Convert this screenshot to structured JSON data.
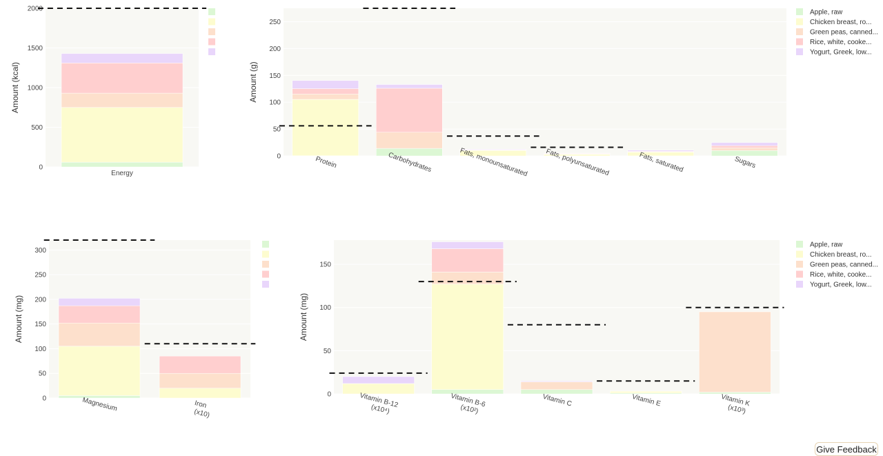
{
  "feedback_label": "Give Feedback",
  "series_colors": [
    "#dcf7d4",
    "#fdfccf",
    "#fde0cc",
    "#ffcfcf",
    "#e9d6fb"
  ],
  "chart_data": [
    {
      "type": "bar",
      "stacked": true,
      "categories": [
        "Energy"
      ],
      "ylabel": "Amount (kcal)",
      "ylim": [
        0,
        2000
      ],
      "yticks": [
        0,
        500,
        1000,
        1500,
        2000
      ],
      "legend": "top-right",
      "series": [
        {
          "values": [
            60
          ]
        },
        {
          "values": [
            690
          ]
        },
        {
          "values": [
            180
          ]
        },
        {
          "values": [
            380
          ]
        },
        {
          "values": [
            120
          ]
        }
      ],
      "reference": [
        2000
      ]
    },
    {
      "type": "bar",
      "stacked": true,
      "categories": [
        "Protein",
        "Carbohydrates",
        "Fats, monounsaturated",
        "Fats, polyunsaturated",
        "Fats, saturated",
        "Sugars"
      ],
      "ylabel": "Amount (g)",
      "ylim": [
        0,
        275
      ],
      "yticks": [
        0,
        50,
        100,
        150,
        200,
        250
      ],
      "legend": "top-right",
      "series": [
        {
          "name": "Apple, raw",
          "values": [
            0.3,
            14,
            0,
            0.1,
            0.1,
            10
          ]
        },
        {
          "name": "Chicken breast, ro...",
          "values": [
            105,
            0,
            10,
            3,
            7,
            0
          ]
        },
        {
          "name": "Green peas, canned...",
          "values": [
            10,
            30,
            0.5,
            0.5,
            0.5,
            5
          ]
        },
        {
          "name": "Rice, white, cooke...",
          "values": [
            10,
            82,
            1,
            1,
            1,
            4
          ]
        },
        {
          "name": "Yogurt, Greek, low...",
          "values": [
            15,
            7,
            1,
            0.5,
            2,
            6
          ]
        }
      ],
      "reference": [
        56,
        275,
        37,
        16,
        null,
        null
      ]
    },
    {
      "type": "bar",
      "stacked": true,
      "categories": [
        "Magnesium",
        "Iron"
      ],
      "category_suffix": [
        "",
        "(x10)"
      ],
      "ylabel": "Amount (mg)",
      "ylim": [
        0,
        320
      ],
      "yticks": [
        0,
        50,
        100,
        150,
        200,
        250,
        300
      ],
      "legend": "top-right",
      "series": [
        {
          "values": [
            5,
            0
          ]
        },
        {
          "values": [
            100,
            20
          ]
        },
        {
          "values": [
            47,
            30
          ]
        },
        {
          "values": [
            35,
            35
          ]
        },
        {
          "values": [
            15,
            0
          ]
        }
      ],
      "reference": [
        320,
        110
      ]
    },
    {
      "type": "bar",
      "stacked": true,
      "categories": [
        "Vitamin B-12",
        "Vitamin B-6",
        "Vitamin C",
        "Vitamin E",
        "Vitamin K"
      ],
      "category_suffix": [
        "(x10⁴)",
        "(x10²)",
        "",
        "",
        "(x10³)"
      ],
      "ylabel": "Amount (mg)",
      "ylim": [
        0,
        178
      ],
      "yticks": [
        0,
        50,
        100,
        150
      ],
      "legend": "top-right",
      "series": [
        {
          "name": "Apple, raw",
          "values": [
            0,
            5,
            5,
            1,
            2
          ]
        },
        {
          "name": "Chicken breast, ro...",
          "values": [
            12,
            122,
            0,
            2,
            0
          ]
        },
        {
          "name": "Green peas, canned...",
          "values": [
            0,
            14,
            9,
            0.5,
            93
          ]
        },
        {
          "name": "Rice, white, cooke...",
          "values": [
            0,
            27,
            0,
            0,
            0
          ]
        },
        {
          "name": "Yogurt, Greek, low...",
          "values": [
            8,
            8,
            1,
            0,
            0
          ]
        }
      ],
      "reference": [
        24,
        130,
        80,
        15,
        100
      ]
    }
  ]
}
